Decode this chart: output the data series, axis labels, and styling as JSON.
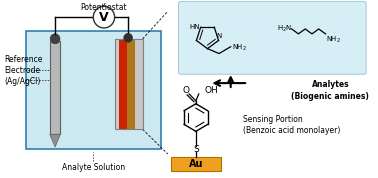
{
  "fig_width": 3.78,
  "fig_height": 1.78,
  "dpi": 100,
  "bg_color": "#ffffff",
  "light_blue_bg": "#d6eef5",
  "solution_color": "#cce8f0",
  "red_layer": "#cc2200",
  "dark_orange_layer": "#c07010",
  "gold_color": "#f0a020",
  "text_potentiostat": "Potentiostat",
  "text_ref_electrode": "Reference\nElectrode\n(Ag/AgCl)",
  "text_analyte_solution": "Analyte Solution",
  "text_analytes": "Analytes\n(Biogenic amines)",
  "text_sensing": "Sensing Portion\n(Benzoic acid monolayer)",
  "text_au": "Au",
  "font_size_label": 5.5,
  "font_size_chem": 6.5,
  "font_size_au": 7.0,
  "font_size_v": 9
}
